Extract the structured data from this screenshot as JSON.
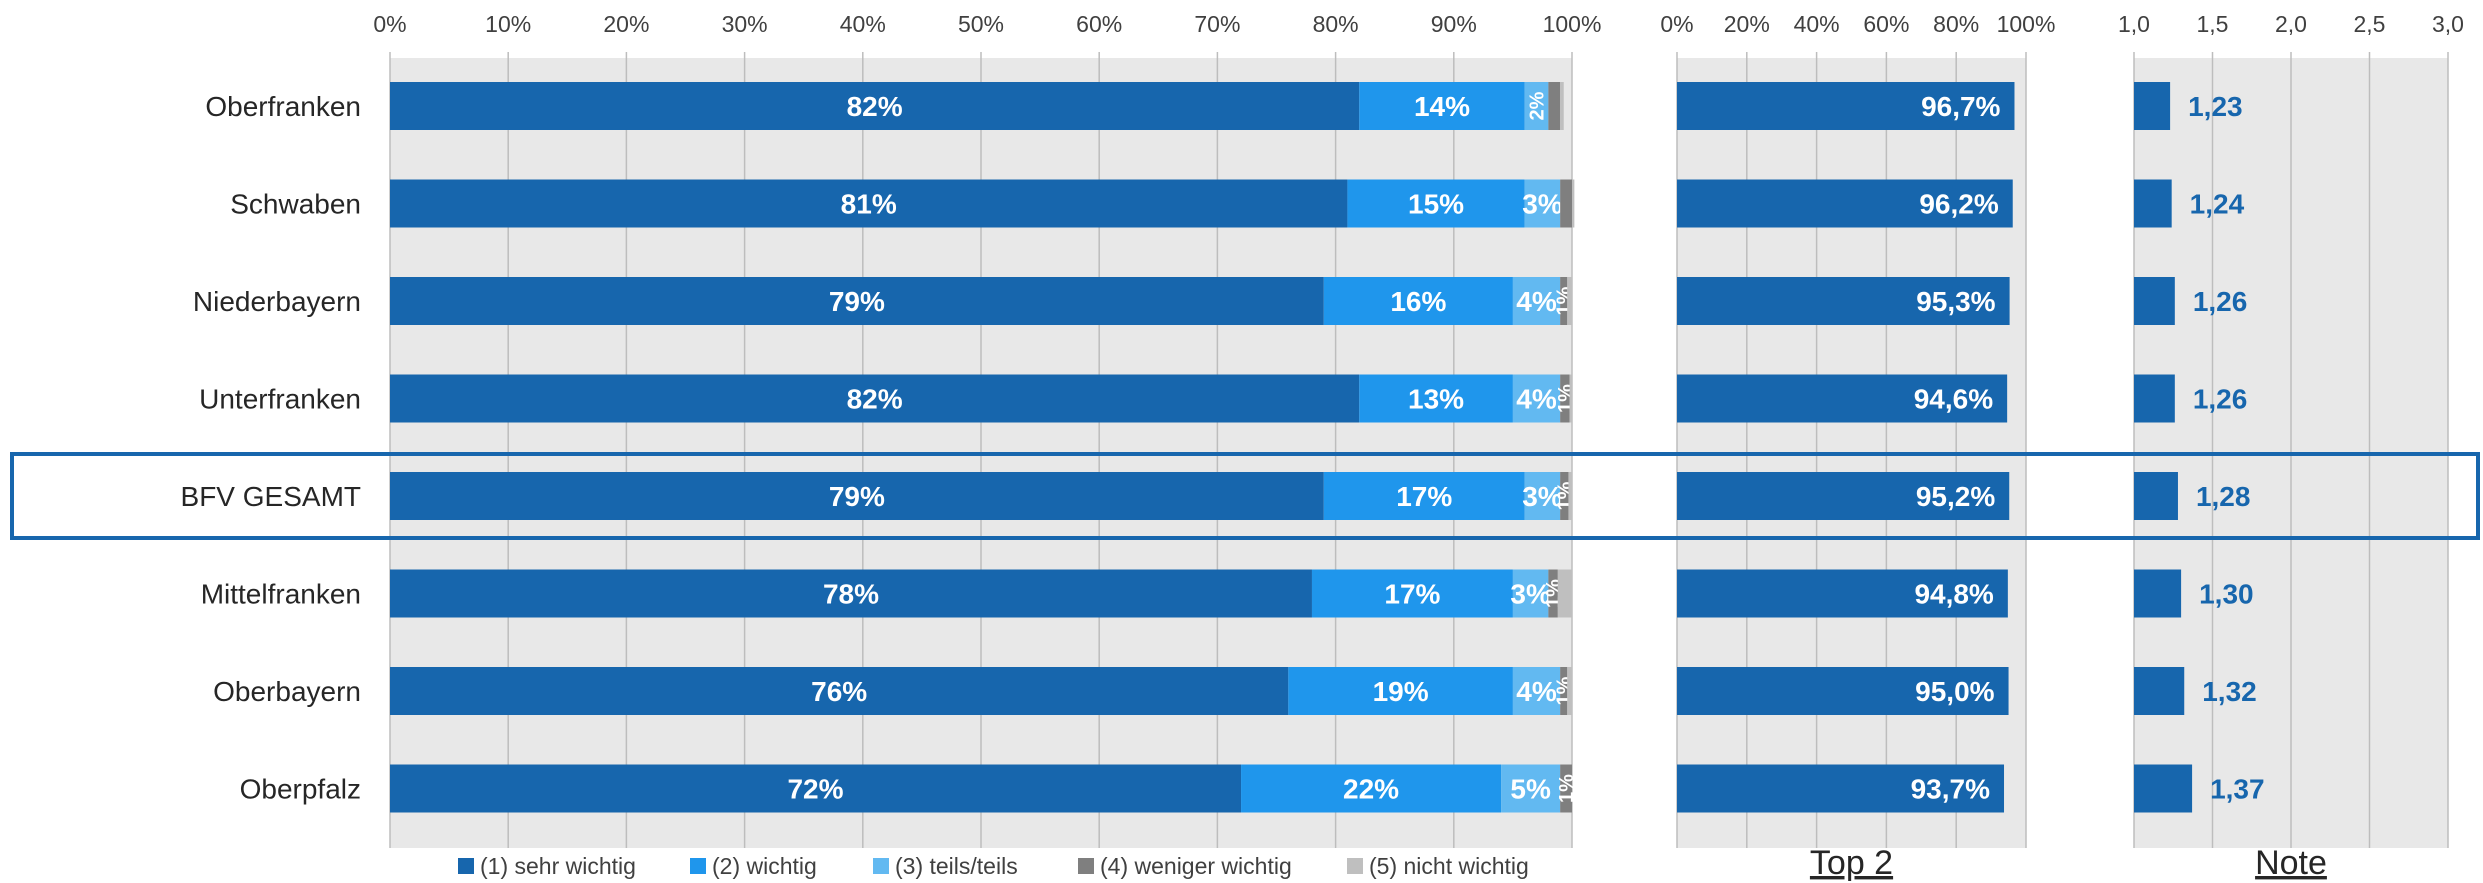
{
  "chart_data": [
    {
      "type": "bar",
      "orientation": "horizontal",
      "stacked": true,
      "categories": [
        "Oberfranken",
        "Schwaben",
        "Niederbayern",
        "Unterfranken",
        "BFV GESAMT",
        "Mittelfranken",
        "Oberbayern",
        "Oberpfalz"
      ],
      "series": [
        {
          "name": "(1) sehr wichtig",
          "color": "#1766ad",
          "values": [
            82,
            81,
            79,
            82,
            79,
            78,
            76,
            72
          ],
          "labels": [
            "82%",
            "81%",
            "79%",
            "82%",
            "79%",
            "78%",
            "76%",
            "72%"
          ]
        },
        {
          "name": "(2) wichtig",
          "color": "#1f96ec",
          "values": [
            14,
            15,
            16,
            13,
            17,
            17,
            19,
            22
          ],
          "labels": [
            "14%",
            "15%",
            "16%",
            "13%",
            "17%",
            "17%",
            "19%",
            "22%"
          ]
        },
        {
          "name": "(3) teils/teils",
          "color": "#62b9f1",
          "values": [
            2,
            3,
            4,
            4,
            3,
            3,
            4,
            5
          ],
          "labels": [
            "2%",
            "3%",
            "4%",
            "4%",
            "3%",
            "3%",
            "4%",
            "5%"
          ]
        },
        {
          "name": "(4) weniger wichtig",
          "color": "#7f7f7f",
          "values": [
            1,
            1,
            0.6,
            0.8,
            0.7,
            0.8,
            0.6,
            1
          ],
          "labels": [
            "",
            "",
            "1%",
            "1%",
            "1%",
            "1%",
            "1%",
            "1%"
          ]
        },
        {
          "name": "(5) nicht wichtig",
          "color": "#bfbfbf",
          "values": [
            0.3,
            0.2,
            0.4,
            0.2,
            0.3,
            1.2,
            0.4,
            0
          ],
          "labels": [
            "",
            "",
            "",
            "",
            "",
            "",
            "",
            ""
          ]
        }
      ],
      "xlim": [
        0,
        100
      ],
      "ticks": [
        "0%",
        "10%",
        "20%",
        "30%",
        "40%",
        "50%",
        "60%",
        "70%",
        "80%",
        "90%",
        "100%"
      ],
      "grid": true,
      "highlight_category": "BFV GESAMT",
      "legend_position": "bottom"
    },
    {
      "type": "bar",
      "orientation": "horizontal",
      "title": "Top 2",
      "categories": [
        "Oberfranken",
        "Schwaben",
        "Niederbayern",
        "Unterfranken",
        "BFV GESAMT",
        "Mittelfranken",
        "Oberbayern",
        "Oberpfalz"
      ],
      "values": [
        96.7,
        96.2,
        95.3,
        94.6,
        95.2,
        94.8,
        95.0,
        93.7
      ],
      "labels": [
        "96,7%",
        "96,2%",
        "95,3%",
        "94,6%",
        "95,2%",
        "94,8%",
        "95,0%",
        "93,7%"
      ],
      "color": "#1766ad",
      "xlim": [
        0,
        100
      ],
      "ticks": [
        "0%",
        "20%",
        "40%",
        "60%",
        "80%",
        "100%"
      ],
      "grid": true
    },
    {
      "type": "bar",
      "orientation": "horizontal",
      "title": "Note",
      "categories": [
        "Oberfranken",
        "Schwaben",
        "Niederbayern",
        "Unterfranken",
        "BFV GESAMT",
        "Mittelfranken",
        "Oberbayern",
        "Oberpfalz"
      ],
      "values": [
        1.23,
        1.24,
        1.26,
        1.26,
        1.28,
        1.3,
        1.32,
        1.37
      ],
      "labels": [
        "1,23",
        "1,24",
        "1,26",
        "1,26",
        "1,28",
        "1,30",
        "1,32",
        "1,37"
      ],
      "color": "#1766ad",
      "label_color": "#1766ad",
      "xlim": [
        1.0,
        3.0
      ],
      "ticks": [
        "1,0",
        "1,5",
        "2,0",
        "2,5",
        "3,0"
      ],
      "grid": true
    }
  ]
}
